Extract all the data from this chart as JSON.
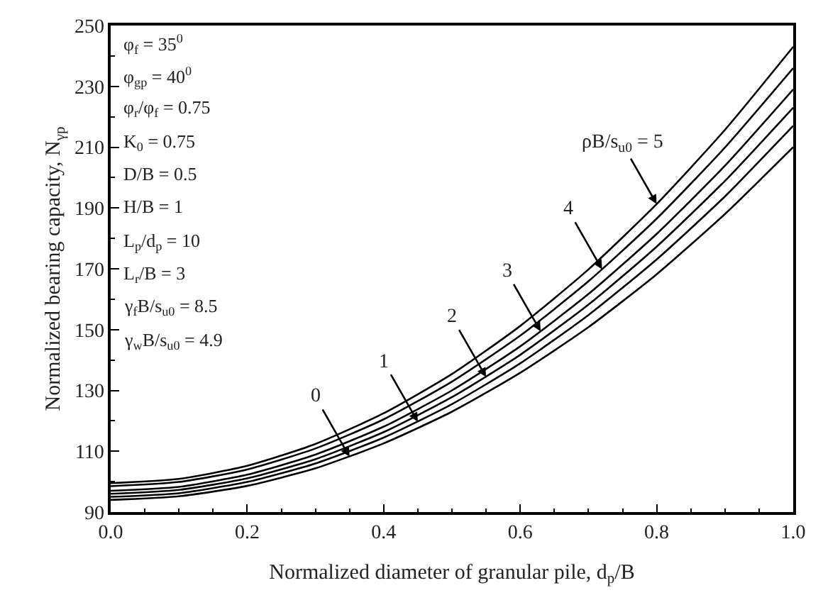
{
  "chart_data": {
    "type": "line",
    "xlabel": "Normalized diameter of granular pile, d$_{p}$/B",
    "ylabel": "Normalized bearing capacity, N$_{γp}$",
    "x": [
      0,
      0.1,
      0.2,
      0.3,
      0.4,
      0.5,
      0.6,
      0.7,
      0.8,
      0.9,
      1.0
    ],
    "series": [
      {
        "color": "#000000",
        "values": [
          94,
          95.2,
          98.6,
          104.4,
          112.6,
          123,
          135.8,
          150.8,
          168.2,
          188,
          210
        ]
      },
      {
        "color": "#000000",
        "values": [
          95,
          96.2,
          99.9,
          106,
          114.5,
          125.5,
          138.9,
          154.8,
          173.1,
          193.8,
          217
        ]
      },
      {
        "color": "#000000",
        "values": [
          96,
          97.3,
          101.1,
          107.4,
          116.3,
          127.8,
          141.7,
          158.2,
          177.3,
          198.9,
          223
        ]
      },
      {
        "color": "#000000",
        "values": [
          97,
          98.3,
          102.3,
          108.9,
          118.1,
          130,
          144.5,
          161.7,
          181.5,
          203.9,
          229
        ]
      },
      {
        "color": "#000000",
        "values": [
          98.5,
          99.9,
          104,
          110.9,
          120.5,
          132.9,
          148,
          165.9,
          186.5,
          209.9,
          236
        ]
      },
      {
        "color": "#000000",
        "values": [
          99.5,
          100.9,
          105.2,
          112.4,
          122.5,
          135.4,
          151.2,
          169.8,
          191.3,
          215.7,
          243
        ]
      }
    ],
    "xlim": [
      0,
      1.0
    ],
    "xticks": [
      {
        "value": 0,
        "label": "0.0"
      },
      0.2,
      0.4,
      0.6,
      0.8,
      {
        "value": 1.0,
        "label": "1.0"
      }
    ],
    "ylim": [
      90,
      250
    ],
    "yticks": [
      90,
      110,
      130,
      150,
      170,
      190,
      210,
      230,
      250
    ],
    "marker": "none",
    "line_style": "solid",
    "annotations": [
      "φ$_{f}$ = 35$^{0}$",
      "φ$_{gp}$ = 40$^{0}$",
      "φ$_{r}$/φ$_{f}$ = 0.75",
      "K$_{0}$ = 0.75",
      "D/B = 0.5",
      "H/B = 1",
      "L$_{p}$/d$_{p}$ = 10",
      "L$_{r}$/B = 3",
      "γ$_{f}$B/s$_{u0}$ = 8.5",
      "γ$_{w}$B/s$_{u0}$ = 4.9",
      {
        "text": "0",
        "x": 0.35,
        "y": 108.2
      },
      {
        "text": "1",
        "x": 0.45,
        "y": 119.7
      },
      {
        "text": "2",
        "x": 0.55,
        "y": 134.4
      },
      {
        "text": "3",
        "x": 0.63,
        "y": 149.4
      },
      {
        "text": "4",
        "x": 0.72,
        "y": 169.8
      },
      {
        "text": "ρB/s$_{u0}$ = 5",
        "x": 0.8,
        "y": 191.3
      }
    ]
  }
}
